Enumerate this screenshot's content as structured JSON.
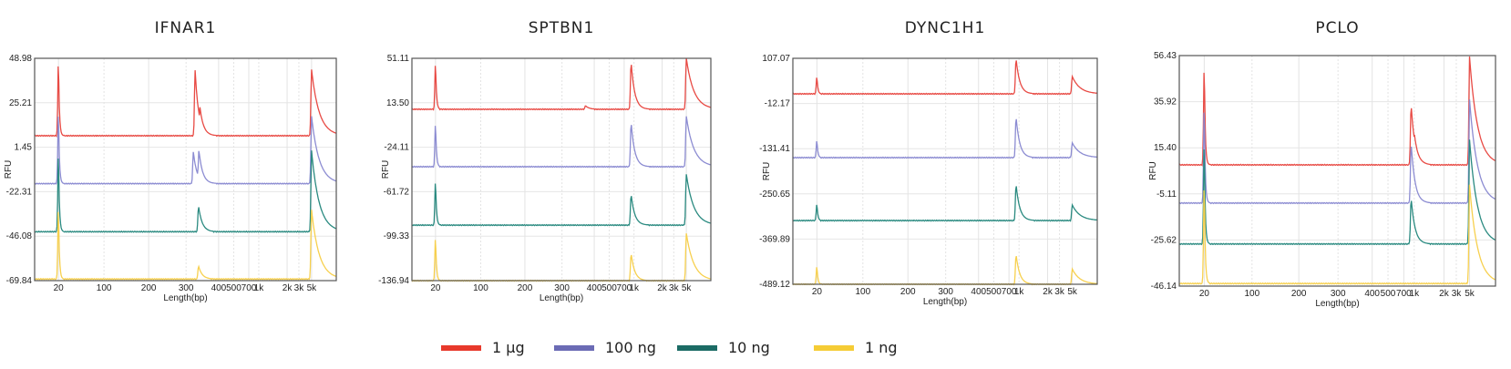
{
  "legend": [
    {
      "name": "1 µg",
      "color": "#e8392b"
    },
    {
      "name": "100 ng",
      "color": "#6b6bb5"
    },
    {
      "name": "10 ng",
      "color": "#1b6b65"
    },
    {
      "name": "1 ng",
      "color": "#f5cc35"
    }
  ],
  "line_colors": [
    "#e84a44",
    "#8c8cd2",
    "#2a8a80",
    "#f7d04e"
  ],
  "chart_data": [
    {
      "type": "line",
      "title": "IFNAR1",
      "xlabel": "Length(bp)",
      "ylabel": "RFU",
      "ylim": [
        -69.84,
        48.98
      ],
      "yticks": [
        "48.98",
        "25.21",
        "1.45",
        "-22.31",
        "-46.08",
        "-69.84"
      ],
      "xticks": [
        "20",
        "100",
        "200",
        "300",
        "400",
        "500",
        "700",
        "1k",
        "2k",
        "3k",
        "5k"
      ],
      "grid": true,
      "series": [
        {
          "name": "1 µg",
          "baseline": 7.6,
          "peaks": [
            [
              20,
              48.98
            ],
            [
              325,
              42.6
            ],
            [
              339,
              23
            ],
            [
              5000,
              43
            ]
          ]
        },
        {
          "name": "100 ng",
          "baseline": -18,
          "peaks": [
            [
              20,
              22
            ],
            [
              320,
              -1
            ],
            [
              336,
              0
            ],
            [
              5000,
              18
            ]
          ]
        },
        {
          "name": "10 ng",
          "baseline": -43.7,
          "peaks": [
            [
              20,
              0
            ],
            [
              335,
              -30
            ],
            [
              5000,
              -0.3
            ]
          ]
        },
        {
          "name": "1 ng",
          "baseline": -69,
          "peaks": [
            [
              20,
              -29
            ],
            [
              335,
              -62
            ],
            [
              5000,
              -32
            ]
          ]
        }
      ]
    },
    {
      "type": "line",
      "title": "SPTBN1",
      "xlabel": "Length(bp)",
      "ylabel": "RFU",
      "ylim": [
        -136.94,
        51.11
      ],
      "yticks": [
        "51.11",
        "13.50",
        "-24.11",
        "-61.72",
        "-99.33",
        "-136.94"
      ],
      "xticks": [
        "20",
        "100",
        "200",
        "300",
        "400",
        "500",
        "700",
        "1k",
        "2k",
        "3k",
        "5k"
      ],
      "grid": true,
      "series": [
        {
          "name": "1 µg",
          "baseline": 8,
          "peaks": [
            [
              20,
              49
            ],
            [
              370,
              11
            ],
            [
              900,
              48
            ],
            [
              5000,
              51
            ]
          ]
        },
        {
          "name": "100 ng",
          "baseline": -40.6,
          "peaks": [
            [
              20,
              -2
            ],
            [
              900,
              -3
            ],
            [
              5000,
              2
            ]
          ]
        },
        {
          "name": "10 ng",
          "baseline": -90,
          "peaks": [
            [
              20,
              -50.7
            ],
            [
              900,
              -63.8
            ],
            [
              5000,
              -47
            ]
          ]
        },
        {
          "name": "1 ng",
          "baseline": -137,
          "peaks": [
            [
              20,
              -98.5
            ],
            [
              900,
              -114
            ],
            [
              5000,
              -97
            ]
          ]
        }
      ]
    },
    {
      "type": "line",
      "title": "DYNC1H1",
      "xlabel": "Length(bp)",
      "ylabel": "RFU",
      "ylim": [
        -489.12,
        107.07
      ],
      "yticks": [
        "107.07",
        "-12.17",
        "-131.41",
        "-250.65",
        "-369.89",
        "-489.12"
      ],
      "xticks": [
        "20",
        "100",
        "200",
        "300",
        "400",
        "500",
        "700",
        "1k",
        "2k",
        "3k",
        "5k"
      ],
      "grid": true,
      "series": [
        {
          "name": "1 µg",
          "baseline": 13.3,
          "peaks": [
            [
              20,
              61
            ],
            [
              900,
              107
            ],
            [
              5000,
              59
            ]
          ]
        },
        {
          "name": "100 ng",
          "baseline": -155,
          "peaks": [
            [
              20,
              -107
            ],
            [
              900,
              -47
            ],
            [
              5000,
              -116
            ]
          ]
        },
        {
          "name": "10 ng",
          "baseline": -321,
          "peaks": [
            [
              20,
              -275
            ],
            [
              900,
              -225
            ],
            [
              5000,
              -280
            ]
          ]
        },
        {
          "name": "1 ng",
          "baseline": -489,
          "peaks": [
            [
              20,
              -439
            ],
            [
              900,
              -410
            ],
            [
              5000,
              -449
            ]
          ]
        }
      ]
    },
    {
      "type": "line",
      "title": "PCLO",
      "xlabel": "Length(bp)",
      "ylabel": "RFU",
      "ylim": [
        -46.14,
        56.43
      ],
      "yticks": [
        "56.43",
        "35.92",
        "15.40",
        "-5.11",
        "-25.62",
        "-46.14"
      ],
      "xticks": [
        "20",
        "100",
        "200",
        "300",
        "400",
        "500",
        "700",
        "1k",
        "2k",
        "3k",
        "5k"
      ],
      "grid": true,
      "series": [
        {
          "name": "1 µg",
          "baseline": 7.8,
          "peaks": [
            [
              20,
              53.6
            ],
            [
              900,
              34.6
            ],
            [
              1000,
              22
            ],
            [
              5000,
              56
            ]
          ]
        },
        {
          "name": "100 ng",
          "baseline": -9.2,
          "peaks": [
            [
              20,
              35.8
            ],
            [
              900,
              17.5
            ],
            [
              5000,
              36.9
            ]
          ]
        },
        {
          "name": "10 ng",
          "baseline": -27.4,
          "peaks": [
            [
              20,
              19.6
            ],
            [
              900,
              -7
            ],
            [
              5000,
              19
            ]
          ]
        },
        {
          "name": "1 ng",
          "baseline": -45,
          "peaks": [
            [
              20,
              1.3
            ],
            [
              5000,
              -1
            ]
          ]
        }
      ]
    }
  ]
}
